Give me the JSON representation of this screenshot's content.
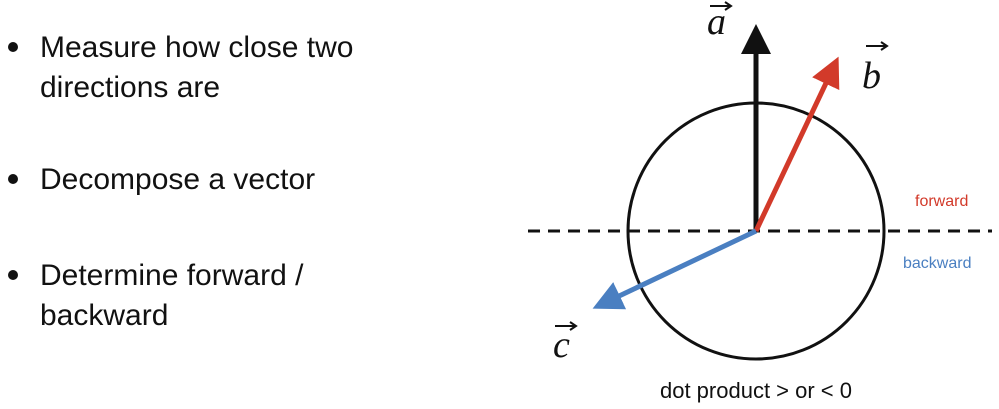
{
  "bullets": [
    {
      "text": "Measure how close two directions are"
    },
    {
      "text": "Decompose a vector"
    },
    {
      "text": "Determine forward / backward"
    }
  ],
  "diagram": {
    "vectors": [
      {
        "label": "a",
        "color": "#111111"
      },
      {
        "label": "b",
        "color": "#d23a2a"
      },
      {
        "label": "c",
        "color": "#4a7fc1"
      }
    ],
    "region_labels": {
      "forward": "forward",
      "backward": "backward",
      "forward_color": "#d23a2a",
      "backward_color": "#4a7fc1"
    },
    "caption": "dot product > or < 0"
  }
}
